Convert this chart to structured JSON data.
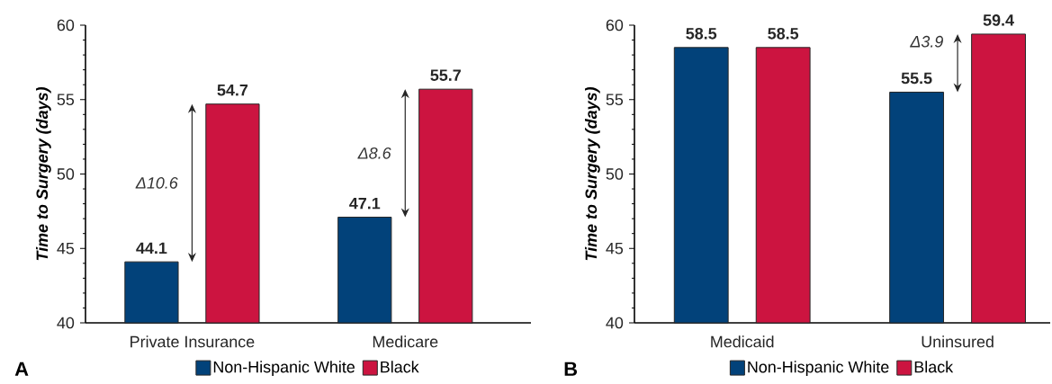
{
  "chart_data": [
    {
      "type": "bar",
      "categories": [
        "Private Insurance",
        "Medicare"
      ],
      "ylabel": "Time to Surgery (days)",
      "ylim": [
        40,
        60
      ],
      "yticks": [
        40,
        45,
        50,
        55,
        60
      ],
      "data_labels": true,
      "legend": "bottom",
      "series": [
        {
          "name": "Non-Hispanic White",
          "color": "#02427a",
          "values": [
            44.1,
            47.1
          ]
        },
        {
          "name": "Black",
          "color": "#cc1440",
          "values": [
            54.7,
            55.7
          ]
        }
      ],
      "annotations": [
        "A",
        "Δ10.6",
        "Δ8.6"
      ]
    },
    {
      "type": "bar",
      "categories": [
        "Medicaid",
        "Uninsured"
      ],
      "ylabel": "Time to Surgery (days)",
      "ylim": [
        40,
        60
      ],
      "yticks": [
        40,
        45,
        50,
        55,
        60
      ],
      "data_labels": true,
      "legend": "bottom",
      "series": [
        {
          "name": "Non-Hispanic White",
          "color": "#02427a",
          "values": [
            58.5,
            55.5
          ]
        },
        {
          "name": "Black",
          "color": "#cc1440",
          "values": [
            58.5,
            59.4
          ]
        }
      ],
      "annotations": [
        "B",
        "Δ3.9"
      ]
    }
  ]
}
